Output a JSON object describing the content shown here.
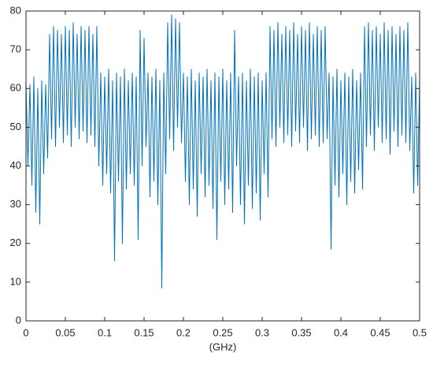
{
  "chart_data": {
    "type": "line",
    "x_label": "(GHz)",
    "x": [
      0,
      0.0025,
      0.005,
      0.0075,
      0.01,
      0.0125,
      0.015,
      0.0175,
      0.02,
      0.0225,
      0.025,
      0.0275,
      0.03,
      0.0325,
      0.035,
      0.0375,
      0.04,
      0.0425,
      0.045,
      0.0475,
      0.05,
      0.0525,
      0.055,
      0.0575,
      0.06,
      0.0625,
      0.065,
      0.0675,
      0.07,
      0.0725,
      0.075,
      0.0775,
      0.08,
      0.0825,
      0.085,
      0.0875,
      0.09,
      0.0925,
      0.095,
      0.0975,
      0.1,
      0.1025,
      0.105,
      0.1075,
      0.11,
      0.1125,
      0.115,
      0.1175,
      0.12,
      0.1225,
      0.125,
      0.1275,
      0.13,
      0.1325,
      0.135,
      0.1375,
      0.14,
      0.1425,
      0.145,
      0.1475,
      0.15,
      0.1525,
      0.155,
      0.1575,
      0.16,
      0.1625,
      0.165,
      0.1675,
      0.17,
      0.1725,
      0.175,
      0.1775,
      0.18,
      0.1825,
      0.185,
      0.1875,
      0.19,
      0.1925,
      0.195,
      0.1975,
      0.2,
      0.2025,
      0.205,
      0.2075,
      0.21,
      0.2125,
      0.215,
      0.2175,
      0.22,
      0.2225,
      0.225,
      0.2275,
      0.23,
      0.2325,
      0.235,
      0.2375,
      0.24,
      0.2425,
      0.245,
      0.2475,
      0.25,
      0.2525,
      0.255,
      0.2575,
      0.26,
      0.2625,
      0.265,
      0.2675,
      0.27,
      0.2725,
      0.275,
      0.2775,
      0.28,
      0.2825,
      0.285,
      0.2875,
      0.29,
      0.2925,
      0.295,
      0.2975,
      0.3,
      0.3025,
      0.305,
      0.3075,
      0.31,
      0.3125,
      0.315,
      0.3175,
      0.32,
      0.3225,
      0.325,
      0.3275,
      0.33,
      0.3325,
      0.335,
      0.3375,
      0.34,
      0.3425,
      0.345,
      0.3475,
      0.35,
      0.3525,
      0.355,
      0.3575,
      0.36,
      0.3625,
      0.365,
      0.3675,
      0.37,
      0.3725,
      0.375,
      0.3775,
      0.38,
      0.3825,
      0.385,
      0.3875,
      0.39,
      0.3925,
      0.395,
      0.3975,
      0.4,
      0.4025,
      0.405,
      0.4075,
      0.41,
      0.4125,
      0.415,
      0.4175,
      0.42,
      0.4225,
      0.425,
      0.4275,
      0.43,
      0.4325,
      0.435,
      0.4375,
      0.44,
      0.4425,
      0.445,
      0.4475,
      0.45,
      0.4525,
      0.455,
      0.4575,
      0.46,
      0.4625,
      0.465,
      0.4675,
      0.47,
      0.4725,
      0.475,
      0.4775,
      0.48,
      0.4825,
      0.485,
      0.4875,
      0.49,
      0.4925,
      0.495,
      0.4975,
      0.5
    ],
    "values": [
      62,
      40,
      61,
      35,
      63,
      28,
      60,
      25,
      62,
      38,
      61,
      42,
      74,
      47,
      76,
      45,
      75,
      50,
      74,
      46,
      76,
      48,
      75,
      45,
      77,
      50,
      74,
      47,
      76,
      49,
      75,
      46,
      76,
      48,
      74,
      45,
      76,
      40,
      64,
      35,
      63,
      38,
      65,
      33,
      62,
      15.5,
      64,
      36,
      63,
      20,
      65,
      34,
      62,
      38,
      64,
      35,
      63,
      21,
      75,
      40,
      73,
      45,
      64,
      32,
      63,
      36,
      65,
      30,
      62,
      8.5,
      64,
      38,
      77,
      47,
      79,
      44,
      78,
      50,
      77,
      46,
      64,
      36,
      63,
      30,
      65,
      34,
      62,
      27,
      64,
      38,
      63,
      32,
      65,
      35,
      62,
      29,
      64,
      21,
      63,
      36,
      65,
      30,
      62,
      34,
      64,
      28,
      75,
      40,
      63,
      30,
      64,
      25,
      62,
      35,
      65,
      29,
      63,
      33,
      64,
      26,
      62,
      38,
      64,
      32,
      76,
      47,
      75,
      45,
      77,
      50,
      74,
      46,
      76,
      48,
      75,
      45,
      77,
      49,
      74,
      46,
      76,
      50,
      75,
      44,
      77,
      47,
      74,
      48,
      76,
      45,
      75,
      46,
      76,
      47,
      64,
      18.5,
      63,
      35,
      65,
      32,
      62,
      38,
      64,
      30,
      63,
      36,
      65,
      33,
      62,
      39,
      64,
      34,
      76,
      45,
      77,
      48,
      75,
      44,
      76,
      50,
      74,
      46,
      77,
      47,
      75,
      43,
      76,
      49,
      74,
      45,
      76,
      48,
      75,
      46,
      77,
      44,
      63,
      33,
      64,
      35,
      62
    ],
    "color": "#0072bd",
    "xlim": [
      0,
      0.5
    ],
    "xticks": [
      0,
      0.05,
      0.1,
      0.15,
      0.2,
      0.25,
      0.3,
      0.35,
      0.4,
      0.45,
      0.5
    ],
    "ylim": [
      0,
      80
    ],
    "yticks": [
      0,
      10,
      20,
      30,
      40,
      50,
      60,
      70,
      80
    ]
  }
}
